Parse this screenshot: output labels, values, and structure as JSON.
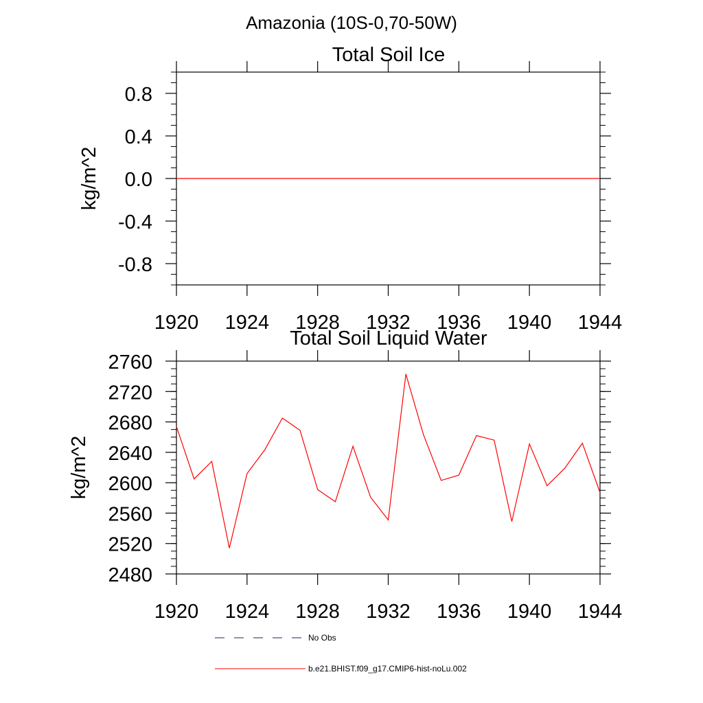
{
  "figure_title": "Amazonia (10S-0,70-50W)",
  "legend": [
    {
      "label": "No Obs",
      "style": "dashed",
      "color": "#1f1f5f"
    },
    {
      "label": "b.e21.BHIST.f09_g17.CMIP6-hist-noLu.002",
      "style": "solid",
      "color": "#ff0000"
    }
  ],
  "chart_data": [
    {
      "type": "line",
      "title": "Total Soil Ice",
      "xlabel": "",
      "ylabel": "kg/m^2",
      "xlim": [
        1920,
        1944
      ],
      "ylim": [
        -1.0,
        1.0
      ],
      "xticks": [
        1920,
        1924,
        1928,
        1932,
        1936,
        1940,
        1944
      ],
      "yticks": [
        -0.8,
        -0.4,
        0.0,
        0.4,
        0.8
      ],
      "ytick_labels": [
        "-0.8",
        "-0.4",
        "0.0",
        "0.4",
        "0.8"
      ],
      "y_minor_step": 0.1,
      "grid": false,
      "series": [
        {
          "name": "b.e21.BHIST.f09_g17.CMIP6-hist-noLu.002",
          "color": "#ff0000",
          "x": [
            1920,
            1921,
            1922,
            1923,
            1924,
            1925,
            1926,
            1927,
            1928,
            1929,
            1930,
            1931,
            1932,
            1933,
            1934,
            1935,
            1936,
            1937,
            1938,
            1939,
            1940,
            1941,
            1942,
            1943,
            1944
          ],
          "values": [
            0,
            0,
            0,
            0,
            0,
            0,
            0,
            0,
            0,
            0,
            0,
            0,
            0,
            0,
            0,
            0,
            0,
            0,
            0,
            0,
            0,
            0,
            0,
            0,
            0
          ]
        }
      ]
    },
    {
      "type": "line",
      "title": "Total Soil Liquid Water",
      "xlabel": "",
      "ylabel": "kg/m^2",
      "xlim": [
        1920,
        1944
      ],
      "ylim": [
        2480,
        2760
      ],
      "xticks": [
        1920,
        1924,
        1928,
        1932,
        1936,
        1940,
        1944
      ],
      "yticks": [
        2480,
        2520,
        2560,
        2600,
        2640,
        2680,
        2720,
        2760
      ],
      "ytick_labels": [
        "2480",
        "2520",
        "2560",
        "2600",
        "2640",
        "2680",
        "2720",
        "2760"
      ],
      "y_minor_step": 10,
      "grid": false,
      "series": [
        {
          "name": "b.e21.BHIST.f09_g17.CMIP6-hist-noLu.002",
          "color": "#ff0000",
          "x": [
            1920,
            1921,
            1922,
            1923,
            1924,
            1925,
            1926,
            1927,
            1928,
            1929,
            1930,
            1931,
            1932,
            1933,
            1934,
            1935,
            1936,
            1937,
            1938,
            1939,
            1940,
            1941,
            1942,
            1943,
            1944
          ],
          "values": [
            2674,
            2605,
            2628,
            2514,
            2612,
            2643,
            2685,
            2669,
            2591,
            2575,
            2648,
            2581,
            2551,
            2743,
            2663,
            2603,
            2610,
            2662,
            2656,
            2549,
            2651,
            2596,
            2619,
            2652,
            2587
          ]
        }
      ]
    }
  ]
}
